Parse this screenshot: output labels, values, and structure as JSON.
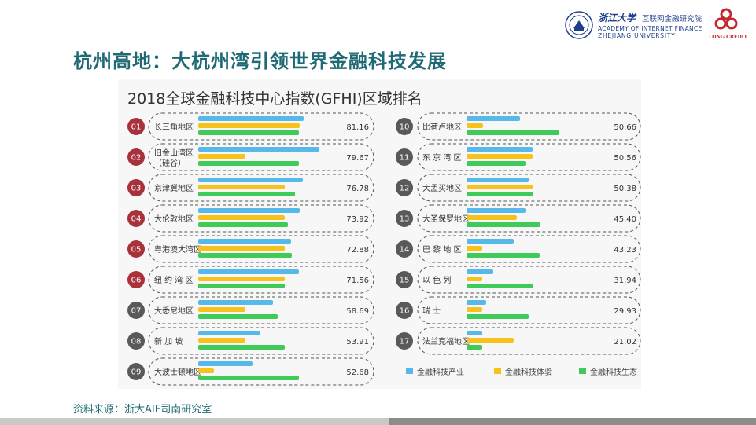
{
  "header": {
    "zju_cn": "浙江大学",
    "aif_cn": "互联网金融研究院",
    "aif_en": "ACADEMY OF INTERNET FINANCE",
    "zju_en": "ZHEJIANG UNIVERSITY",
    "lc_text": "LONG CREDIT"
  },
  "main_title": "杭州高地：大杭州湾引领世界金融科技发展",
  "footer": {
    "source": "资料来源：浙大AIF司南研究室"
  },
  "colors": {
    "title": "#1f6a75",
    "industry": "#56b9e9",
    "experience": "#f7c21b",
    "ecosystem": "#3fca5a",
    "badge_top": "#a8323b",
    "badge_other": "#595959"
  },
  "chart_data": {
    "type": "bar",
    "title": "2018全球金融科技中心指数(GFHI)区域排名",
    "legend": [
      "金融科技产业",
      "金融科技体验",
      "金融科技生态"
    ],
    "rows": [
      {
        "rank": "01",
        "name": "长三角地区",
        "score": "81.16",
        "industry": 134,
        "experience": 129,
        "ecosystem": 128
      },
      {
        "rank": "02",
        "name": "旧金山湾区",
        "name2": "（硅谷）",
        "score": "79.67",
        "industry": 154,
        "experience": 60,
        "ecosystem": 128
      },
      {
        "rank": "03",
        "name": "京津冀地区",
        "score": "76.78",
        "industry": 133,
        "experience": 110,
        "ecosystem": 123
      },
      {
        "rank": "04",
        "name": "大伦敦地区",
        "score": "73.92",
        "industry": 129,
        "experience": 110,
        "ecosystem": 114
      },
      {
        "rank": "05",
        "name": "粤港澳大湾区",
        "score": "72.88",
        "industry": 118,
        "experience": 110,
        "ecosystem": 119
      },
      {
        "rank": "06",
        "name": "纽 约 湾 区",
        "score": "71.56",
        "industry": 128,
        "experience": 110,
        "ecosystem": 110
      },
      {
        "rank": "07",
        "name": "大悉尼地区",
        "score": "58.69",
        "industry": 95,
        "experience": 60,
        "ecosystem": 101
      },
      {
        "rank": "08",
        "name": "新   加   坡",
        "score": "53.91",
        "industry": 79,
        "experience": 60,
        "ecosystem": 110
      },
      {
        "rank": "09",
        "name": "大波士顿地区",
        "score": "52.68",
        "industry": 69,
        "experience": 20,
        "ecosystem": 128
      },
      {
        "rank": "10",
        "name": "比荷卢地区",
        "score": "50.66",
        "industry": 68,
        "experience": 21,
        "ecosystem": 118
      },
      {
        "rank": "11",
        "name": "东 京 湾 区",
        "score": "50.56",
        "industry": 84,
        "experience": 84,
        "ecosystem": 75
      },
      {
        "rank": "12",
        "name": "大孟买地区",
        "score": "50.38",
        "industry": 79,
        "experience": 84,
        "ecosystem": 84
      },
      {
        "rank": "13",
        "name": "大圣保罗地区",
        "score": "45.40",
        "industry": 75,
        "experience": 64,
        "ecosystem": 94
      },
      {
        "rank": "14",
        "name": "巴 黎 地 区",
        "score": "43.23",
        "industry": 60,
        "experience": 20,
        "ecosystem": 93
      },
      {
        "rank": "15",
        "name": "以     色     列",
        "score": "31.94",
        "industry": 34,
        "experience": 20,
        "ecosystem": 84
      },
      {
        "rank": "16",
        "name": "瑞           士",
        "score": "29.93",
        "industry": 25,
        "experience": 20,
        "ecosystem": 79
      },
      {
        "rank": "17",
        "name": "法兰克福地区",
        "score": "21.02",
        "industry": 20,
        "experience": 60,
        "ecosystem": 20
      }
    ]
  }
}
